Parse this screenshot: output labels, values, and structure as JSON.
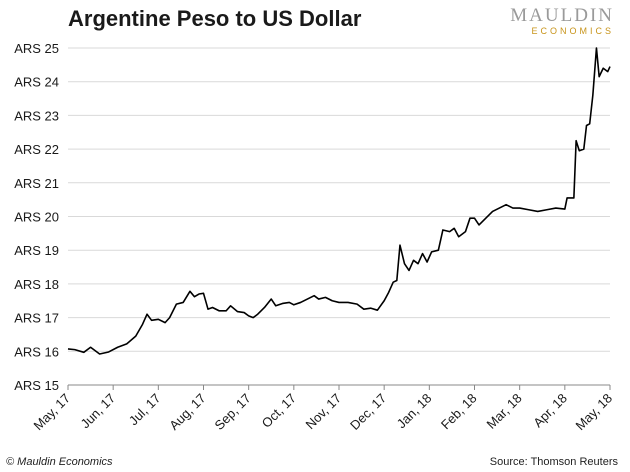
{
  "header": {
    "title": "Argentine Peso to US Dollar",
    "logo_brand": "MAULDIN",
    "logo_sub": "ECONOMICS"
  },
  "footer": {
    "copyright": "© Mauldin Economics",
    "source": "Source: Thomson Reuters"
  },
  "colors": {
    "line": "#000000",
    "grid": "#d9d9d9",
    "logo_gold": "#c8941a",
    "logo_gray": "#9a9a9a"
  },
  "chart_data": {
    "type": "line",
    "title": "Argentine Peso to US Dollar",
    "xlabel": "",
    "ylabel": "",
    "ylim": [
      15,
      25
    ],
    "y_ticks": [
      {
        "value": 15,
        "label": "ARS 15"
      },
      {
        "value": 16,
        "label": "ARS 16"
      },
      {
        "value": 17,
        "label": "ARS 17"
      },
      {
        "value": 18,
        "label": "ARS 18"
      },
      {
        "value": 19,
        "label": "ARS 19"
      },
      {
        "value": 20,
        "label": "ARS 20"
      },
      {
        "value": 21,
        "label": "ARS 21"
      },
      {
        "value": 22,
        "label": "ARS 22"
      },
      {
        "value": 23,
        "label": "ARS 23"
      },
      {
        "value": 24,
        "label": "ARS 24"
      },
      {
        "value": 25,
        "label": "ARS 25"
      }
    ],
    "x_ticks": [
      "May, 17",
      "Jun, 17",
      "Jul, 17",
      "Aug, 17",
      "Sep, 17",
      "Oct, 17",
      "Nov, 17",
      "Dec, 17",
      "Jan, 18",
      "Feb, 18",
      "Mar, 18",
      "Apr, 18",
      "May, 18"
    ],
    "grid": "horizontal",
    "series": [
      {
        "values": [
          [
            0.0,
            16.07
          ],
          [
            0.15,
            16.05
          ],
          [
            0.35,
            15.97
          ],
          [
            0.5,
            16.12
          ],
          [
            0.7,
            15.92
          ],
          [
            0.9,
            15.98
          ],
          [
            1.1,
            16.12
          ],
          [
            1.3,
            16.22
          ],
          [
            1.5,
            16.45
          ],
          [
            1.65,
            16.8
          ],
          [
            1.75,
            17.1
          ],
          [
            1.85,
            16.92
          ],
          [
            2.0,
            16.95
          ],
          [
            2.15,
            16.85
          ],
          [
            2.25,
            17.0
          ],
          [
            2.4,
            17.4
          ],
          [
            2.55,
            17.45
          ],
          [
            2.7,
            17.78
          ],
          [
            2.8,
            17.62
          ],
          [
            2.9,
            17.7
          ],
          [
            3.0,
            17.72
          ],
          [
            3.1,
            17.25
          ],
          [
            3.2,
            17.3
          ],
          [
            3.35,
            17.2
          ],
          [
            3.5,
            17.2
          ],
          [
            3.6,
            17.35
          ],
          [
            3.75,
            17.18
          ],
          [
            3.9,
            17.15
          ],
          [
            4.0,
            17.05
          ],
          [
            4.1,
            17.0
          ],
          [
            4.2,
            17.1
          ],
          [
            4.35,
            17.3
          ],
          [
            4.5,
            17.55
          ],
          [
            4.6,
            17.35
          ],
          [
            4.75,
            17.42
          ],
          [
            4.9,
            17.45
          ],
          [
            5.0,
            17.38
          ],
          [
            5.15,
            17.45
          ],
          [
            5.3,
            17.55
          ],
          [
            5.45,
            17.65
          ],
          [
            5.55,
            17.55
          ],
          [
            5.7,
            17.6
          ],
          [
            5.85,
            17.5
          ],
          [
            6.0,
            17.45
          ],
          [
            6.2,
            17.45
          ],
          [
            6.4,
            17.4
          ],
          [
            6.55,
            17.25
          ],
          [
            6.7,
            17.28
          ],
          [
            6.85,
            17.22
          ],
          [
            7.0,
            17.5
          ],
          [
            7.1,
            17.75
          ],
          [
            7.2,
            18.05
          ],
          [
            7.28,
            18.1
          ],
          [
            7.35,
            19.15
          ],
          [
            7.45,
            18.6
          ],
          [
            7.55,
            18.4
          ],
          [
            7.65,
            18.7
          ],
          [
            7.75,
            18.6
          ],
          [
            7.85,
            18.9
          ],
          [
            7.95,
            18.65
          ],
          [
            8.05,
            18.95
          ],
          [
            8.2,
            19.0
          ],
          [
            8.3,
            19.6
          ],
          [
            8.45,
            19.55
          ],
          [
            8.55,
            19.65
          ],
          [
            8.65,
            19.4
          ],
          [
            8.8,
            19.55
          ],
          [
            8.9,
            19.95
          ],
          [
            9.0,
            19.95
          ],
          [
            9.1,
            19.75
          ],
          [
            9.25,
            19.95
          ],
          [
            9.4,
            20.15
          ],
          [
            9.55,
            20.25
          ],
          [
            9.7,
            20.35
          ],
          [
            9.85,
            20.25
          ],
          [
            10.0,
            20.25
          ],
          [
            10.2,
            20.2
          ],
          [
            10.4,
            20.15
          ],
          [
            10.6,
            20.2
          ],
          [
            10.8,
            20.25
          ],
          [
            11.0,
            20.22
          ],
          [
            11.05,
            20.55
          ],
          [
            11.2,
            20.55
          ],
          [
            11.25,
            22.25
          ],
          [
            11.32,
            21.95
          ],
          [
            11.42,
            22.0
          ],
          [
            11.48,
            22.7
          ],
          [
            11.55,
            22.75
          ],
          [
            11.62,
            23.6
          ],
          [
            11.7,
            25.0
          ],
          [
            11.76,
            24.15
          ],
          [
            11.85,
            24.4
          ],
          [
            11.95,
            24.3
          ],
          [
            12.0,
            24.45
          ]
        ]
      }
    ]
  }
}
